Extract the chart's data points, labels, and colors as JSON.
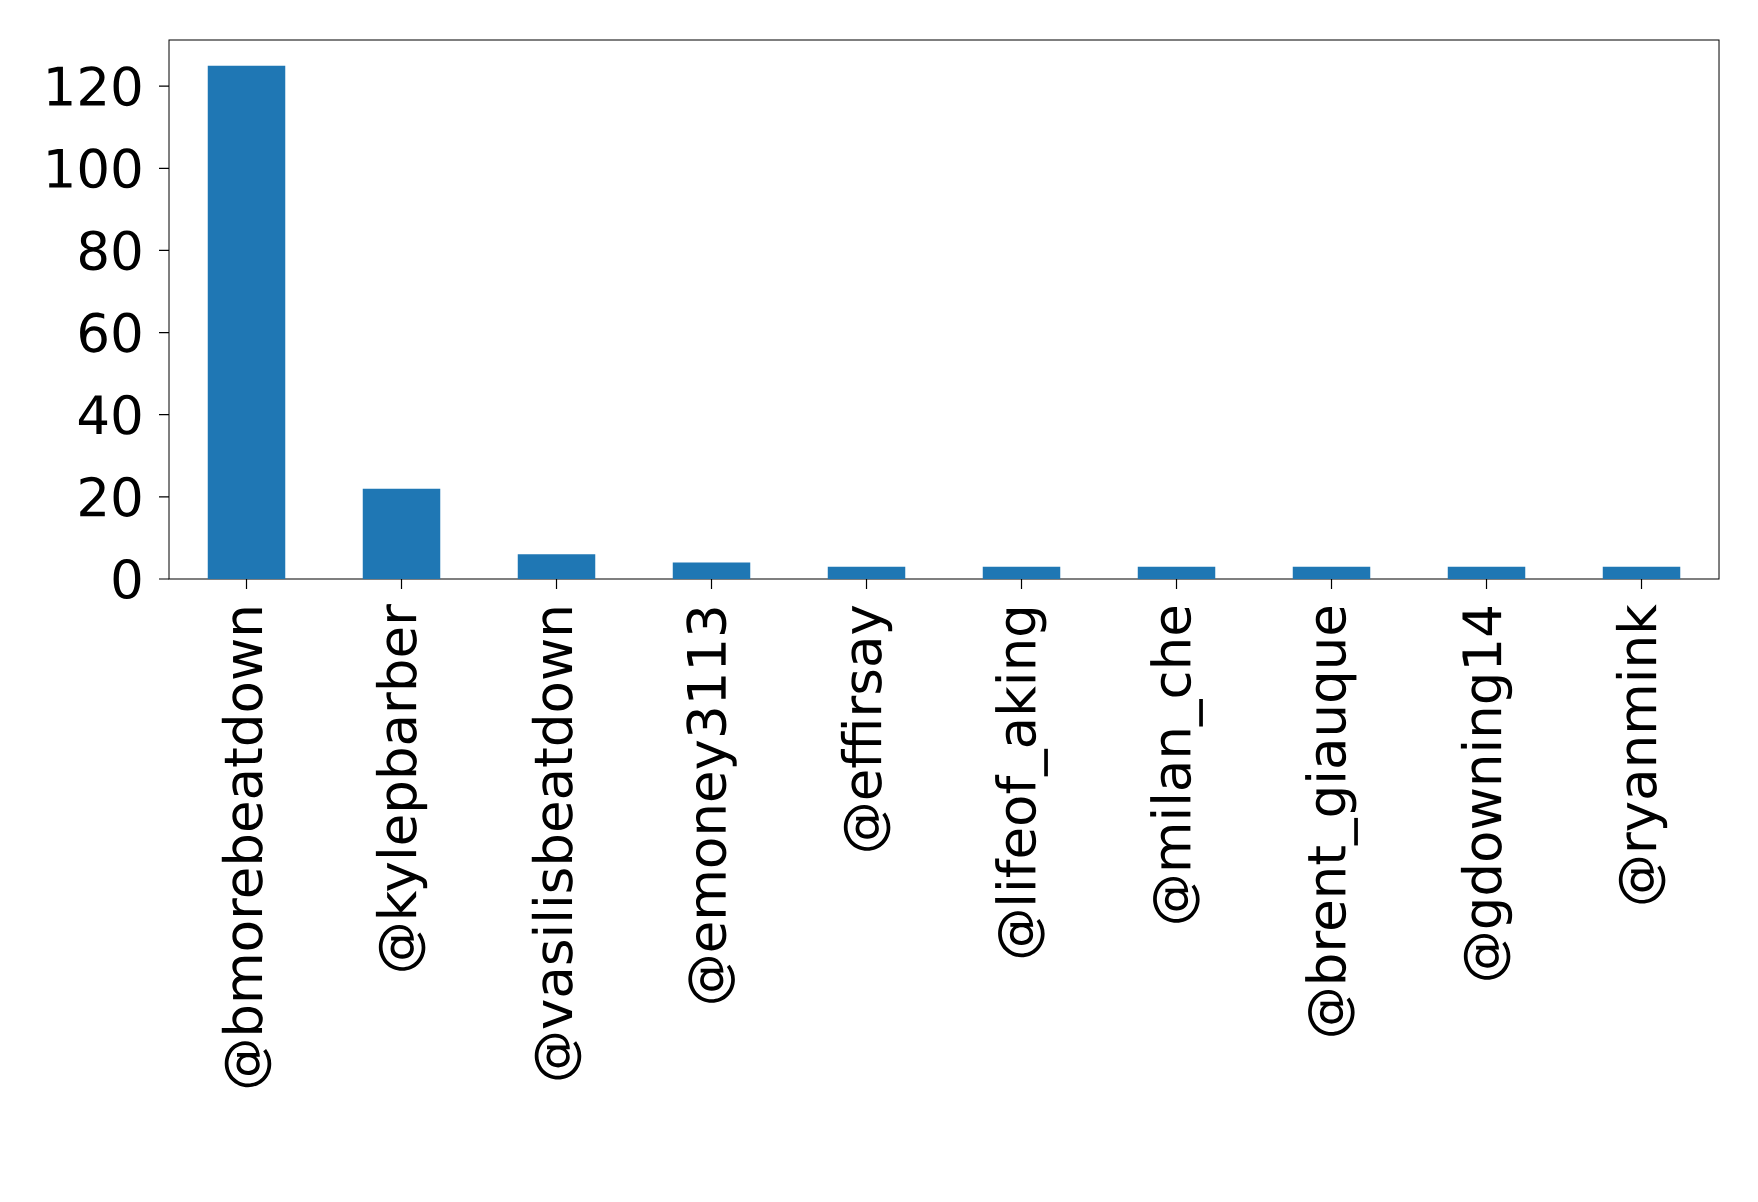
{
  "chart_data": {
    "type": "bar",
    "categories": [
      "@bmorebeatdown",
      "@kylepbarber",
      "@vasilisbeatdown",
      "@emoney3113",
      "@effirsay",
      "@lifeof_aking",
      "@milan_che",
      "@brent_giauque",
      "@gdowning14",
      "@ryanmink"
    ],
    "values": [
      125,
      22,
      6,
      4,
      3,
      3,
      3,
      3,
      3,
      3
    ],
    "color": "#1f77b4",
    "ylim": [
      0,
      131.25
    ],
    "yticks": [
      0,
      20,
      40,
      60,
      80,
      100,
      120
    ]
  }
}
